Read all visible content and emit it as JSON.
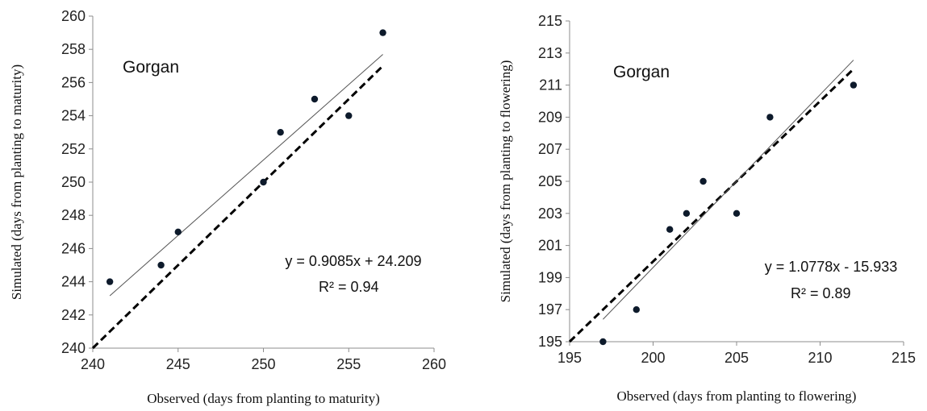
{
  "chart_data": [
    {
      "type": "scatter",
      "title": "",
      "annotation": "Gorgan",
      "xlabel": "Observed (days from planting  to maturity)",
      "ylabel": "Simulated  (days from planting to maturity)",
      "xlim": [
        240,
        260
      ],
      "ylim": [
        240,
        260
      ],
      "xticks": [
        240,
        245,
        250,
        255,
        260
      ],
      "yticks": [
        240,
        242,
        244,
        246,
        248,
        250,
        252,
        254,
        256,
        258,
        260
      ],
      "points": [
        {
          "x": 241,
          "y": 244
        },
        {
          "x": 244,
          "y": 245
        },
        {
          "x": 245,
          "y": 247
        },
        {
          "x": 250,
          "y": 250
        },
        {
          "x": 251,
          "y": 253
        },
        {
          "x": 253,
          "y": 255
        },
        {
          "x": 255,
          "y": 254
        },
        {
          "x": 257,
          "y": 259
        }
      ],
      "fit": {
        "slope": 0.9085,
        "intercept": 24.209,
        "x_range": [
          241,
          257
        ],
        "equation": "y = 0.9085x + 24.209",
        "r2_text": "R² = 0.94"
      },
      "one_to_one": {
        "x_range": [
          240,
          257
        ]
      },
      "grid": false,
      "colors": {
        "points": "#0d1a2b",
        "fit": "#555555",
        "one_to_one": "#000000"
      }
    },
    {
      "type": "scatter",
      "title": "",
      "annotation": "Gorgan",
      "xlabel": "Observed (days from planting  to flowering)",
      "ylabel": "Simulated  (days from planting to flowering)",
      "xlim": [
        195,
        215
      ],
      "ylim": [
        195,
        215
      ],
      "xticks": [
        195,
        200,
        205,
        210,
        215
      ],
      "yticks": [
        195,
        197,
        199,
        201,
        203,
        205,
        207,
        209,
        211,
        213,
        215
      ],
      "points": [
        {
          "x": 197,
          "y": 195
        },
        {
          "x": 199,
          "y": 197
        },
        {
          "x": 201,
          "y": 202
        },
        {
          "x": 202,
          "y": 203
        },
        {
          "x": 203,
          "y": 205
        },
        {
          "x": 205,
          "y": 203
        },
        {
          "x": 207,
          "y": 209
        },
        {
          "x": 212,
          "y": 211
        }
      ],
      "fit": {
        "slope": 1.0778,
        "intercept": -15.933,
        "x_range": [
          197,
          212
        ],
        "equation": "y = 1.0778x - 15.933",
        "r2_text": "R² = 0.89"
      },
      "one_to_one": {
        "x_range": [
          195,
          212
        ]
      },
      "grid": false,
      "colors": {
        "points": "#0d1a2b",
        "fit": "#555555",
        "one_to_one": "#000000"
      }
    }
  ]
}
